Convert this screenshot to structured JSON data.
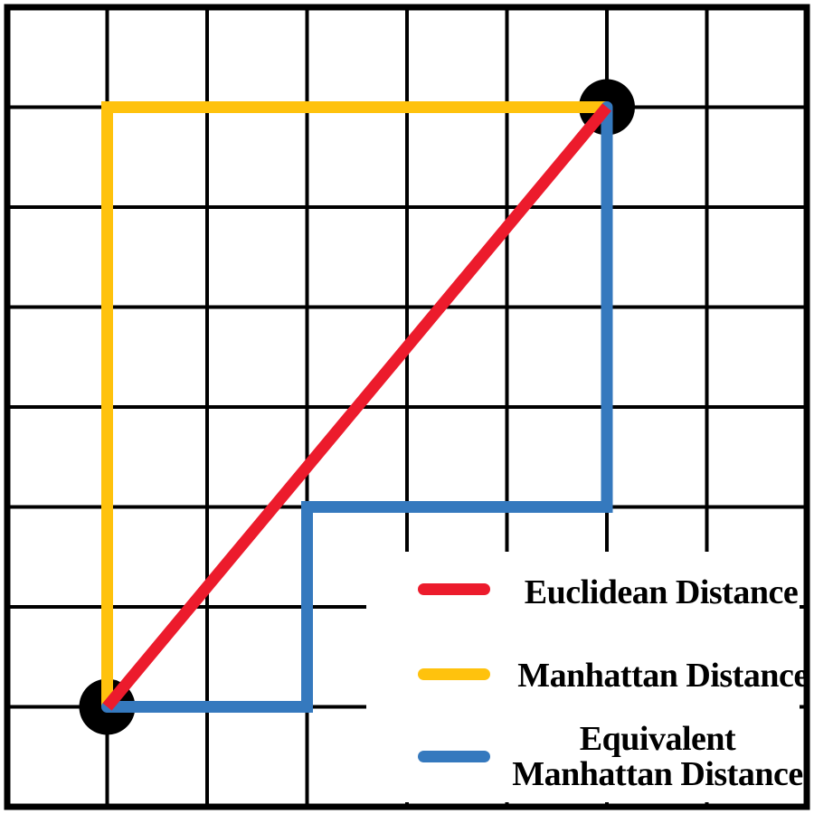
{
  "figure": {
    "description": "Grid diagram comparing distance metrics between two points",
    "grid": {
      "cols": 8,
      "rows": 8
    },
    "points": [
      {
        "name": "start-point",
        "col": 1,
        "row": 7
      },
      {
        "name": "end-point",
        "col": 6,
        "row": 1
      }
    ],
    "paths": {
      "euclidean": [
        [
          1,
          7
        ],
        [
          6,
          1
        ]
      ],
      "manhattan": [
        [
          1,
          7
        ],
        [
          1,
          1
        ],
        [
          6,
          1
        ]
      ],
      "equivalent": [
        [
          1,
          7
        ],
        [
          3,
          7
        ],
        [
          3,
          5
        ],
        [
          6,
          5
        ],
        [
          6,
          1
        ]
      ]
    }
  },
  "colors": {
    "euclidean": "#EC1B2C",
    "manhattan": "#FFC20D",
    "equivalent": "#3579BE",
    "grid_line": "#000000",
    "point": "#000000",
    "background": "#FFFFFF",
    "label_text": "#000000"
  },
  "legend": {
    "items": [
      {
        "id": "euclidean",
        "label_lines": [
          "Euclidean Distance"
        ]
      },
      {
        "id": "manhattan",
        "label_lines": [
          "Manhattan Distance"
        ]
      },
      {
        "id": "equivalent",
        "label_lines": [
          "Equivalent",
          "Manhattan Distance"
        ]
      }
    ]
  }
}
